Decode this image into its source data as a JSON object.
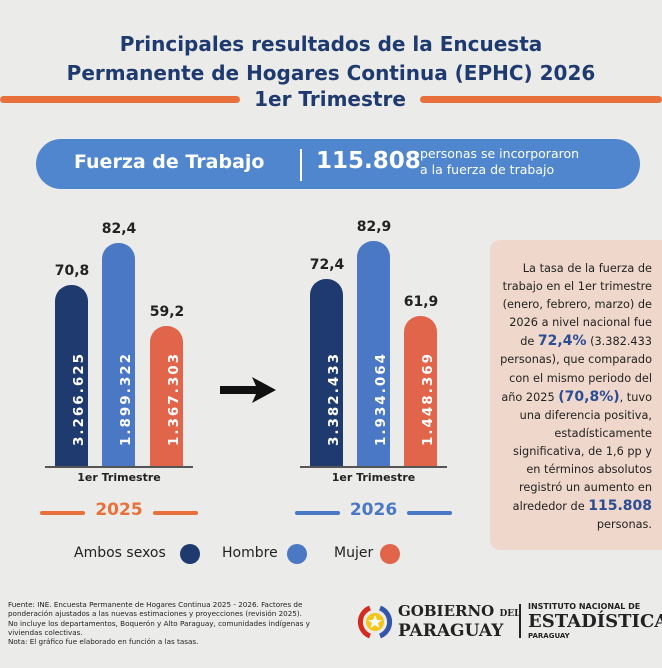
{
  "header": {
    "title_line1": "Principales resultados de la  Encuesta",
    "title_line2": "Permanente de Hogares Continua (EPHC) 2026",
    "title_line3": "1er Trimestre"
  },
  "banner": {
    "label": "Fuerza de Trabajo",
    "value": "115.808",
    "desc_line1": "personas se incorporaron",
    "desc_line2": "a la fuerza de trabajo"
  },
  "colors": {
    "ambos": "#1e3a6e",
    "hombre": "#4a78c4",
    "mujer": "#e0654a",
    "accent": "#e8703a"
  },
  "chart_data": [
    {
      "type": "bar",
      "year": "2025",
      "xlabel": "1er Trimestre",
      "categories": [
        "Ambos sexos",
        "Hombre",
        "Mujer"
      ],
      "values": [
        70.8,
        82.4,
        59.2
      ],
      "value_labels": [
        "70,8",
        "82,4",
        "59,2"
      ],
      "counts": [
        "3.266.625",
        "1.899.322",
        "1.367.303"
      ]
    },
    {
      "type": "bar",
      "year": "2026",
      "xlabel": "1er Trimestre",
      "categories": [
        "Ambos sexos",
        "Hombre",
        "Mujer"
      ],
      "values": [
        72.4,
        82.9,
        61.9
      ],
      "value_labels": [
        "72,4",
        "82,9",
        "61,9"
      ],
      "counts": [
        "3.382.433",
        "1.934.064",
        "1.448.369"
      ]
    }
  ],
  "legend": [
    "Ambos sexos",
    "Hombre",
    "Mujer"
  ],
  "side": {
    "t1": "La tasa de la fuerza de trabajo en el 1er trimestre (enero, febrero, marzo) de 2026 a nivel nacional fue de ",
    "h1": "72,4%",
    "t2": " (3.382.433 personas), que comparado con el mismo periodo del año 2025 ",
    "h2": "(70,8%)",
    "t3": ", tuvo una diferencia positiva, estadísticamente significativa, de 1,6 pp y en términos absolutos registró un aumento en alrededor de ",
    "h3": "115.808",
    "t4": " personas."
  },
  "footer": {
    "l1": "Fuente: INE. Encuesta Permanente de Hogares Continua 2025 - 2026. Factores de ponderación ajustados a las nuevas estimaciones y proyecciones (revisión 2025).",
    "l2": "No incluye los departamentos, Boquerón y Alto Paraguay, comunidades indígenas y viviendas colectivas.",
    "l3": "Nota: El gráfico fue elaborado en función a las tasas."
  },
  "logos": {
    "gob1": "GOBIERNO",
    "gob_del": "DEL",
    "gob2": "PARAGUAY",
    "ine1": "INSTITUTO NACIONAL DE",
    "ine2": "ESTADÍSTICA",
    "ine3": "PARAGUAY"
  }
}
